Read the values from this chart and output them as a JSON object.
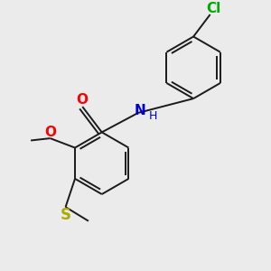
{
  "background_color": "#ebebeb",
  "bond_color": "#1a1a1a",
  "atom_colors": {
    "O": "#ff0000",
    "N": "#0000cc",
    "Cl": "#00aa00",
    "S": "#aaaa00"
  },
  "figsize": [
    3.0,
    3.0
  ],
  "dpi": 100,
  "xlim": [
    0,
    10
  ],
  "ylim": [
    0,
    10
  ]
}
